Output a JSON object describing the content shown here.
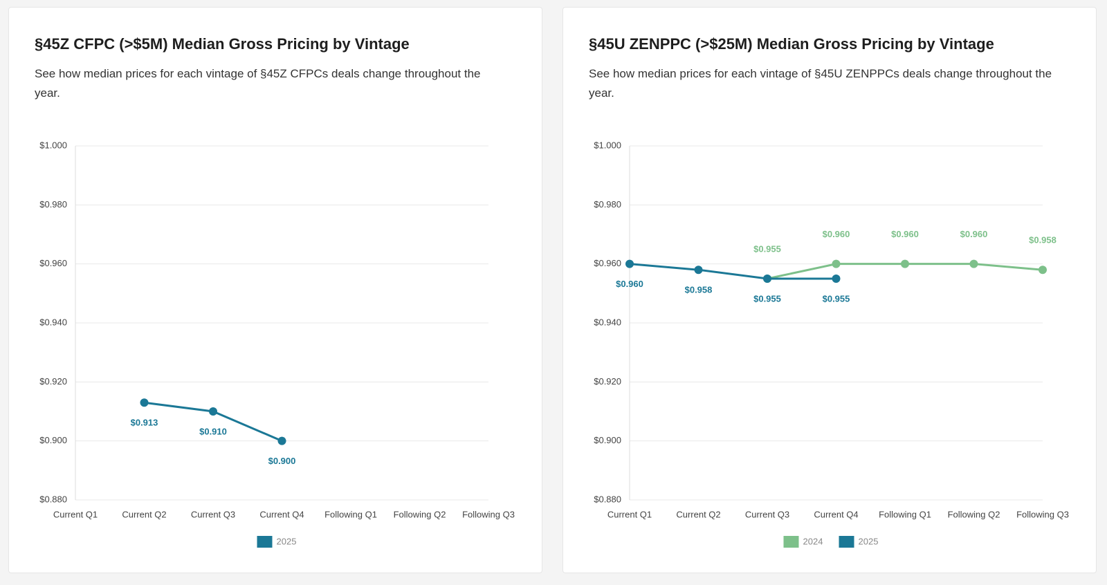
{
  "chart_data": [
    {
      "type": "line",
      "title": "§45Z CFPC (>$5M) Median Gross Pricing by Vintage",
      "subtitle": "See how median prices for each vintage of §45Z CFPCs deals change throughout the year.",
      "categories": [
        "Current Q1",
        "Current Q2",
        "Current Q3",
        "Current Q4",
        "Following Q1",
        "Following Q2",
        "Following Q3"
      ],
      "series": [
        {
          "name": "2025",
          "color": "#1b7896",
          "label_position": "below",
          "values": [
            null,
            0.913,
            0.91,
            0.9,
            null,
            null,
            null
          ],
          "value_labels": [
            null,
            "$0.913",
            "$0.910",
            "$0.900",
            null,
            null,
            null
          ]
        }
      ],
      "ylim": [
        0.88,
        1.0
      ],
      "yticks": [
        {
          "value": 0.88,
          "label": "$0.880"
        },
        {
          "value": 0.9,
          "label": "$0.900"
        },
        {
          "value": 0.92,
          "label": "$0.920"
        },
        {
          "value": 0.94,
          "label": "$0.940"
        },
        {
          "value": 0.96,
          "label": "$0.960"
        },
        {
          "value": 0.98,
          "label": "$0.980"
        },
        {
          "value": 1.0,
          "label": "$1.000"
        }
      ],
      "grid": true,
      "legend": "bottom"
    },
    {
      "type": "line",
      "title": "§45U ZENPPC (>$25M) Median Gross Pricing by Vintage",
      "subtitle": "See how median prices for each vintage of §45U ZENPPCs deals change throughout the year.",
      "categories": [
        "Current Q1",
        "Current Q2",
        "Current Q3",
        "Current Q4",
        "Following Q1",
        "Following Q2",
        "Following Q3"
      ],
      "series": [
        {
          "name": "2024",
          "color": "#7dc08a",
          "label_position": "above",
          "values": [
            null,
            null,
            0.955,
            0.96,
            0.96,
            0.96,
            0.958
          ],
          "value_labels": [
            null,
            null,
            "$0.955",
            "$0.960",
            "$0.960",
            "$0.960",
            "$0.958"
          ]
        },
        {
          "name": "2025",
          "color": "#1b7896",
          "label_position": "below",
          "values": [
            0.96,
            0.958,
            0.955,
            0.955,
            null,
            null,
            null
          ],
          "value_labels": [
            "$0.960",
            "$0.958",
            "$0.955",
            "$0.955",
            null,
            null,
            null
          ]
        }
      ],
      "ylim": [
        0.88,
        1.0
      ],
      "yticks": [
        {
          "value": 0.88,
          "label": "$0.880"
        },
        {
          "value": 0.9,
          "label": "$0.900"
        },
        {
          "value": 0.92,
          "label": "$0.920"
        },
        {
          "value": 0.94,
          "label": "$0.940"
        },
        {
          "value": 0.96,
          "label": "$0.960"
        },
        {
          "value": 0.98,
          "label": "$0.980"
        },
        {
          "value": 1.0,
          "label": "$1.000"
        }
      ],
      "grid": true,
      "legend": "bottom"
    }
  ]
}
